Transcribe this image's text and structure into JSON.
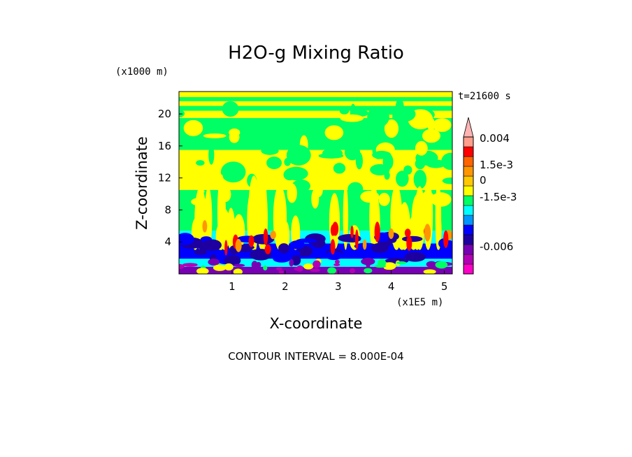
{
  "chart_data": {
    "type": "heatmap",
    "title": "H2O-g Mixing Ratio",
    "xlabel": "X-coordinate",
    "ylabel": "Z-coordinate",
    "x_units": "(x1E5 m)",
    "y_units": "(x1000 m)",
    "time_label": "t=21600 s",
    "note": "CONTOUR INTERVAL = 8.000E-04",
    "xlim": [
      0,
      5.15
    ],
    "ylim": [
      0,
      22.8
    ],
    "x_ticks": [
      1,
      2,
      3,
      4,
      5
    ],
    "y_ticks": [
      4,
      8,
      12,
      16,
      20
    ],
    "colorbar": {
      "labels": [
        "0.004",
        "1.5e-3",
        "0",
        "-1.5e-3",
        "-0.006"
      ],
      "colors": [
        "#ff00c8",
        "#b400b4",
        "#7800b4",
        "#1e00a0",
        "#0000ff",
        "#0096ff",
        "#00ffff",
        "#00ff64",
        "#ffff00",
        "#ffc800",
        "#ff9600",
        "#ff6400",
        "#ff0000",
        "#ff9e8c",
        "#ffb4b4"
      ]
    }
  }
}
